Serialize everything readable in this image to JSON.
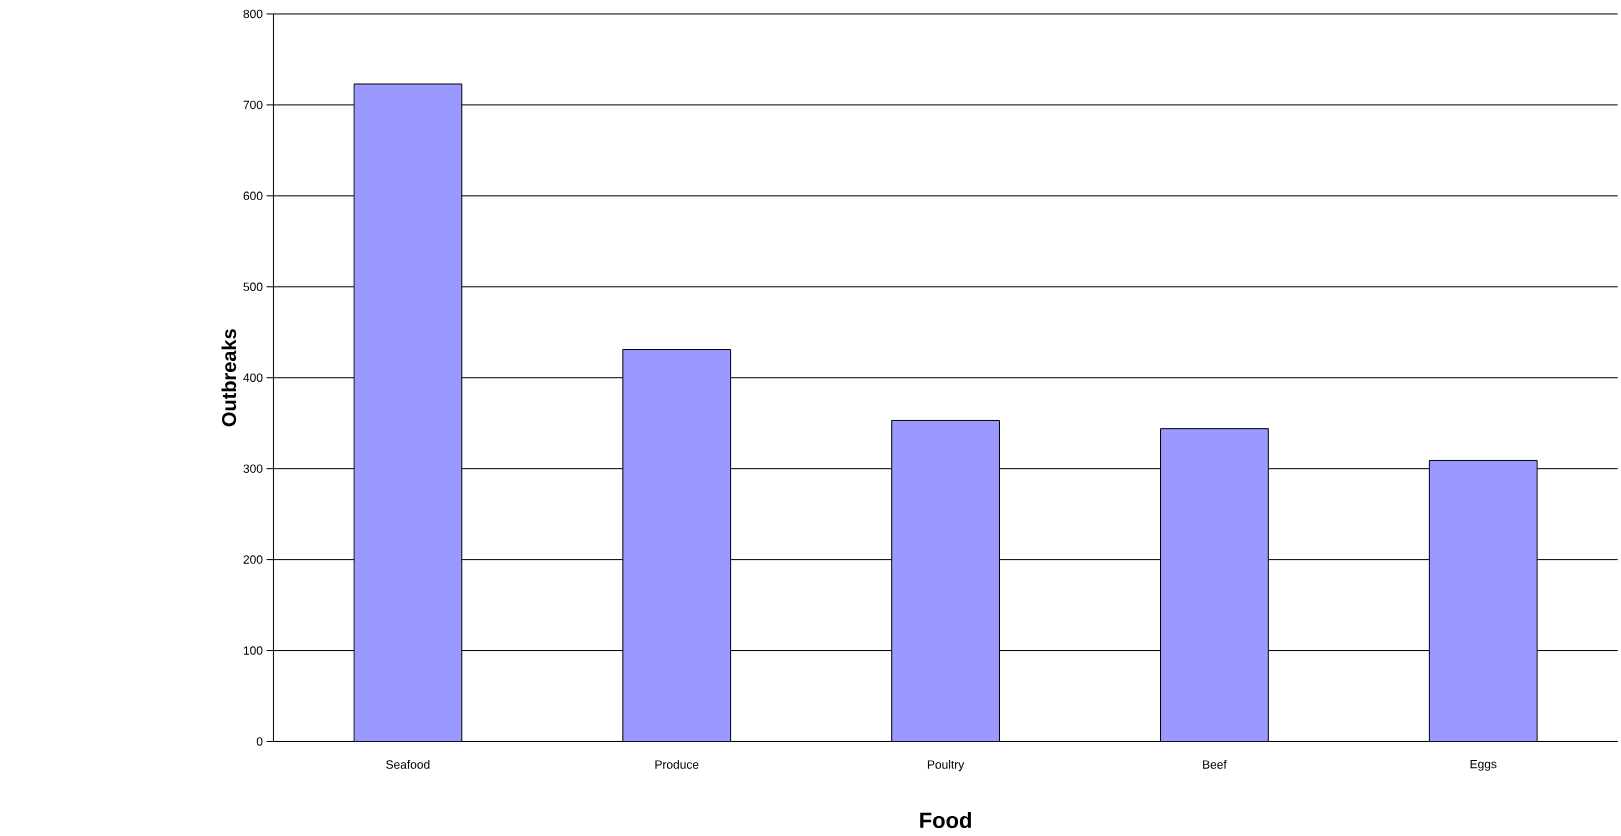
{
  "chart_data": {
    "type": "bar",
    "xlabel": "Food",
    "ylabel": "Outbreaks",
    "categories": [
      "Seafood",
      "Produce",
      "Poultry",
      "Beef",
      "Eggs"
    ],
    "values": [
      723,
      431,
      353,
      344,
      309
    ],
    "color": "#9999ff",
    "ylim": [
      0,
      800
    ],
    "yticks": [
      0,
      100,
      200,
      300,
      400,
      500,
      600,
      700,
      800
    ],
    "grid": "y"
  }
}
